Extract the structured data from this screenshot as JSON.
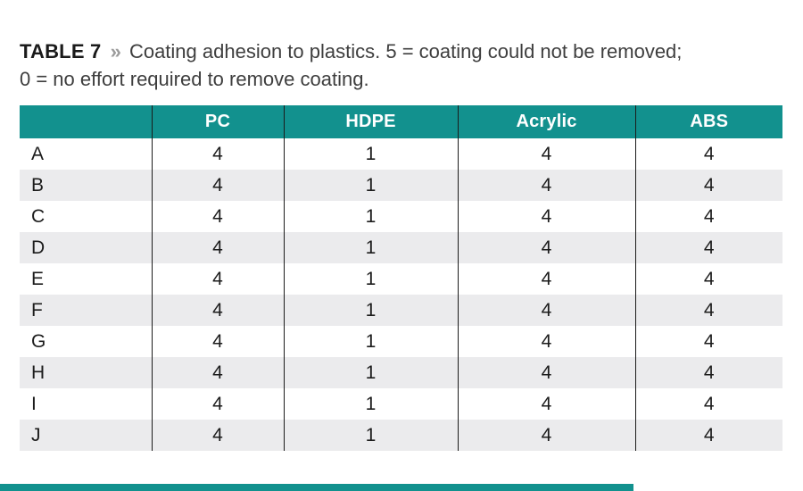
{
  "title": {
    "label": "TABLE 7",
    "separator": "»",
    "caption": "Coating adhesion to plastics. 5 = coating could not be removed; 0 = no effort required to remove coating."
  },
  "table": {
    "columns": [
      "",
      "PC",
      "HDPE",
      "Acrylic",
      "ABS"
    ],
    "rows": [
      {
        "label": "A",
        "values": [
          "4",
          "1",
          "4",
          "4"
        ]
      },
      {
        "label": "B",
        "values": [
          "4",
          "1",
          "4",
          "4"
        ]
      },
      {
        "label": "C",
        "values": [
          "4",
          "1",
          "4",
          "4"
        ]
      },
      {
        "label": "D",
        "values": [
          "4",
          "1",
          "4",
          "4"
        ]
      },
      {
        "label": "E",
        "values": [
          "4",
          "1",
          "4",
          "4"
        ]
      },
      {
        "label": "F",
        "values": [
          "4",
          "1",
          "4",
          "4"
        ]
      },
      {
        "label": "G",
        "values": [
          "4",
          "1",
          "4",
          "4"
        ]
      },
      {
        "label": "H",
        "values": [
          "4",
          "1",
          "4",
          "4"
        ]
      },
      {
        "label": "I",
        "values": [
          "4",
          "1",
          "4",
          "4"
        ]
      },
      {
        "label": "J",
        "values": [
          "4",
          "1",
          "4",
          "4"
        ]
      }
    ]
  },
  "colors": {
    "accent_teal": "#12918E",
    "stripe_gray": "#EBEBED",
    "divider_black": "#1B1B1B"
  },
  "chart_data": {
    "type": "table",
    "title": "TABLE 7 » Coating adhesion to plastics. 5 = coating could not be removed; 0 = no effort required to remove coating.",
    "columns": [
      "PC",
      "HDPE",
      "Acrylic",
      "ABS"
    ],
    "row_labels": [
      "A",
      "B",
      "C",
      "D",
      "E",
      "F",
      "G",
      "H",
      "I",
      "J"
    ],
    "series": [
      {
        "name": "PC",
        "values": [
          4,
          4,
          4,
          4,
          4,
          4,
          4,
          4,
          4,
          4
        ]
      },
      {
        "name": "HDPE",
        "values": [
          1,
          1,
          1,
          1,
          1,
          1,
          1,
          1,
          1,
          1
        ]
      },
      {
        "name": "Acrylic",
        "values": [
          4,
          4,
          4,
          4,
          4,
          4,
          4,
          4,
          4,
          4
        ]
      },
      {
        "name": "ABS",
        "values": [
          4,
          4,
          4,
          4,
          4,
          4,
          4,
          4,
          4,
          4
        ]
      }
    ],
    "value_scale": {
      "min": 0,
      "max": 5
    }
  }
}
